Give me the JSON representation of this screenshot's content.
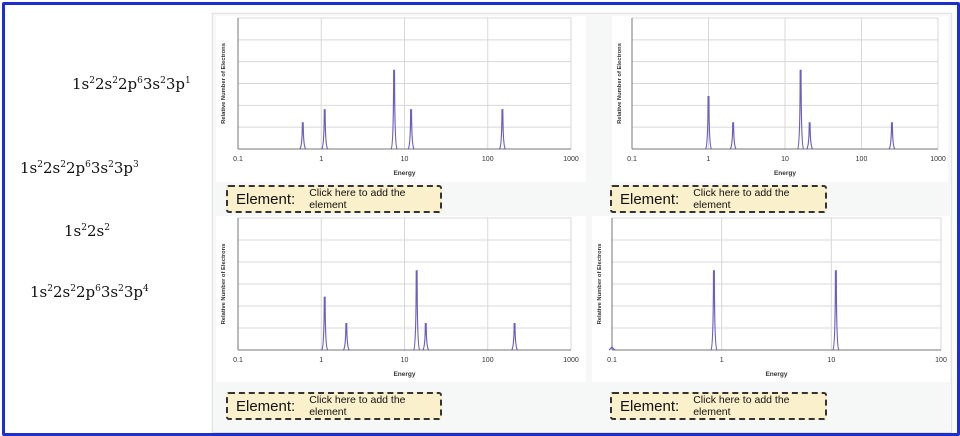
{
  "formulas": [
    {
      "parts": [
        [
          "1s",
          "2"
        ],
        [
          "2s",
          "2"
        ],
        [
          "2p",
          "6"
        ],
        [
          "3s",
          "2"
        ],
        [
          "3p",
          "1"
        ]
      ]
    },
    {
      "parts": [
        [
          "1s",
          "2"
        ],
        [
          "2s",
          "2"
        ],
        [
          "2p",
          "6"
        ],
        [
          "3s",
          "2"
        ],
        [
          "3p",
          "3"
        ]
      ]
    },
    {
      "parts": [
        [
          "1s",
          "2"
        ],
        [
          "2s",
          "2"
        ]
      ]
    },
    {
      "parts": [
        [
          "1s",
          "2"
        ],
        [
          "2s",
          "2"
        ],
        [
          "2p",
          "6"
        ],
        [
          "3s",
          "2"
        ],
        [
          "3p",
          "4"
        ]
      ]
    }
  ],
  "element_boxes": [
    {
      "label": "Element:",
      "value": "Click here to add the element"
    },
    {
      "label": "Element:",
      "value": "Click here to add the element"
    },
    {
      "label": "Element:",
      "value": "Click here to add the element"
    },
    {
      "label": "Element:",
      "value": "Click here to add the element"
    }
  ],
  "colors": {
    "frame": "#1f2ecf",
    "peak": "#6a5fc1",
    "element_bg": "#fbf0cc"
  },
  "chart_data": [
    {
      "type": "line",
      "xscale": "log",
      "xlim": [
        0.1,
        1000
      ],
      "xticks": [
        "0.1",
        "1",
        "10",
        "100",
        "1000"
      ],
      "xlabel": "Energy",
      "ylabel": "Relative Number of Electrons",
      "series": [
        {
          "peaks": [
            {
              "x": 0.6,
              "y": 0.2
            },
            {
              "x": 1.1,
              "y": 0.3
            },
            {
              "x": 7.5,
              "y": 0.6
            },
            {
              "x": 12,
              "y": 0.3
            },
            {
              "x": 150,
              "y": 0.3
            }
          ]
        }
      ]
    },
    {
      "type": "line",
      "xscale": "log",
      "xlim": [
        0.1,
        1000
      ],
      "xticks": [
        "0.1",
        "1",
        "10",
        "100",
        "1000"
      ],
      "xlabel": "Energy",
      "ylabel": "Relative Number of Electrons",
      "series": [
        {
          "peaks": [
            {
              "x": 1.0,
              "y": 0.4
            },
            {
              "x": 2.1,
              "y": 0.2
            },
            {
              "x": 16,
              "y": 0.6
            },
            {
              "x": 21,
              "y": 0.2
            },
            {
              "x": 250,
              "y": 0.2
            }
          ]
        }
      ]
    },
    {
      "type": "line",
      "xscale": "log",
      "xlim": [
        0.1,
        1000
      ],
      "xticks": [
        "0.1",
        "1",
        "10",
        "100",
        "1000"
      ],
      "xlabel": "Energy",
      "ylabel": "Relative Number of Electrons",
      "series": [
        {
          "peaks": [
            {
              "x": 1.1,
              "y": 0.4
            },
            {
              "x": 2.0,
              "y": 0.2
            },
            {
              "x": 14,
              "y": 0.6
            },
            {
              "x": 18,
              "y": 0.2
            },
            {
              "x": 210,
              "y": 0.2
            }
          ]
        }
      ]
    },
    {
      "type": "line",
      "xscale": "log",
      "xlim": [
        0.1,
        100
      ],
      "xticks": [
        "0.1",
        "1",
        "10",
        "100"
      ],
      "xlabel": "Energy",
      "ylabel": "Relative Number of Electrons",
      "series": [
        {
          "peaks": [
            {
              "x": 0.1,
              "y": 0.02
            },
            {
              "x": 0.85,
              "y": 0.6
            },
            {
              "x": 11,
              "y": 0.6
            }
          ]
        }
      ]
    }
  ]
}
